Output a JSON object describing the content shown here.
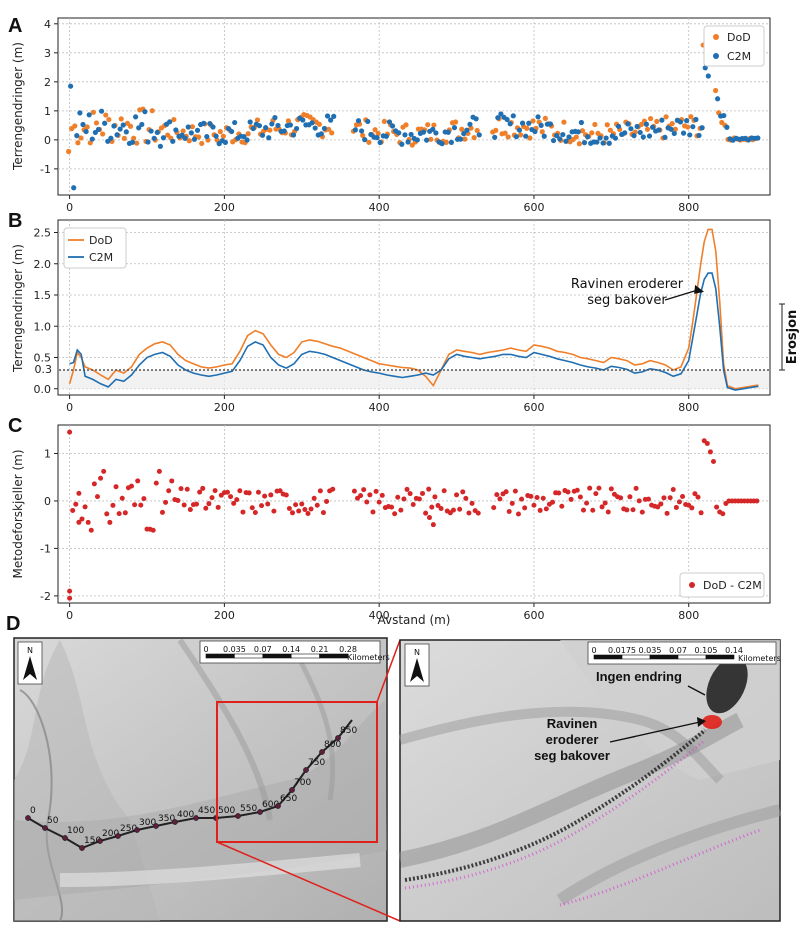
{
  "colors": {
    "dod": "#f07f2a",
    "c2m": "#1f6fb2",
    "diff": "#d62728",
    "grid": "#bdbdbd",
    "threshold": "#555555"
  },
  "chart_data": [
    {
      "panel": "A",
      "type": "scatter",
      "ylabel": "Terrengendringer (m)",
      "xlabel": "",
      "xlim": [
        -15,
        905
      ],
      "ylim": [
        -1.9,
        4.2
      ],
      "xticks": [
        "0",
        "200",
        "400",
        "600",
        "800"
      ],
      "yticks": [
        "-1",
        "0",
        "1",
        "2",
        "3",
        "4"
      ],
      "grid": true,
      "legend": "top-right",
      "series": [
        {
          "name": "DoD",
          "key": "dod",
          "gen": "pointsA_dod"
        },
        {
          "name": "C2M",
          "key": "c2m",
          "gen": "pointsA_c2m"
        }
      ]
    },
    {
      "panel": "B",
      "type": "line",
      "ylabel": "Terrengendringer (m)",
      "xlabel": "",
      "xlim": [
        -15,
        905
      ],
      "ylim": [
        -0.1,
        2.7
      ],
      "xticks": [
        "0",
        "200",
        "400",
        "600",
        "800"
      ],
      "yticks": [
        "0.0",
        "0.5",
        "1.0",
        "1.5",
        "2.0",
        "2.5"
      ],
      "threshold": {
        "value": 0.3,
        "label": "0.3"
      },
      "grid": true,
      "legend": "top-left",
      "annotation": {
        "line1": "Ravinen eroderer",
        "line2": "seg bakover",
        "x": 825,
        "y": 1.55
      },
      "side_label": "Erosjon",
      "series": [
        {
          "name": "DoD",
          "key": "dod",
          "x": [
            0,
            5,
            10,
            15,
            20,
            30,
            40,
            50,
            60,
            70,
            80,
            90,
            100,
            110,
            120,
            130,
            140,
            150,
            160,
            170,
            180,
            190,
            200,
            210,
            220,
            230,
            240,
            250,
            260,
            270,
            280,
            290,
            300,
            310,
            320,
            330,
            340,
            350,
            360,
            370,
            380,
            390,
            400,
            410,
            420,
            430,
            440,
            450,
            460,
            470,
            480,
            490,
            500,
            510,
            520,
            530,
            540,
            550,
            560,
            570,
            580,
            590,
            600,
            610,
            620,
            630,
            640,
            650,
            660,
            670,
            680,
            690,
            700,
            710,
            720,
            730,
            740,
            750,
            760,
            770,
            780,
            790,
            800,
            805,
            810,
            815,
            820,
            825,
            830,
            835,
            840,
            845,
            850,
            860,
            870,
            880,
            890
          ],
          "y": [
            0.08,
            0.3,
            0.58,
            0.5,
            0.35,
            0.3,
            0.22,
            0.15,
            0.3,
            0.25,
            0.35,
            0.55,
            0.65,
            0.72,
            0.75,
            0.7,
            0.55,
            0.45,
            0.4,
            0.35,
            0.33,
            0.35,
            0.38,
            0.4,
            0.6,
            0.85,
            0.93,
            0.88,
            0.7,
            0.55,
            0.5,
            0.58,
            0.75,
            0.78,
            0.76,
            0.72,
            0.68,
            0.65,
            0.6,
            0.55,
            0.5,
            0.45,
            0.4,
            0.38,
            0.36,
            0.34,
            0.33,
            0.3,
            0.2,
            0.05,
            0.3,
            0.55,
            0.62,
            0.6,
            0.58,
            0.55,
            0.58,
            0.6,
            0.62,
            0.65,
            0.62,
            0.6,
            0.7,
            0.68,
            0.65,
            0.6,
            0.58,
            0.55,
            0.5,
            0.48,
            0.45,
            0.42,
            0.5,
            0.48,
            0.45,
            0.38,
            0.4,
            0.45,
            0.42,
            0.38,
            0.3,
            0.35,
            0.65,
            1.05,
            1.5,
            1.95,
            2.35,
            2.55,
            2.55,
            2.2,
            1.4,
            0.4,
            0.05,
            0.0,
            0.02,
            0.04,
            0.06
          ]
        },
        {
          "name": "C2M",
          "key": "c2m",
          "x": [
            0,
            5,
            10,
            15,
            20,
            30,
            40,
            50,
            60,
            70,
            80,
            90,
            100,
            110,
            120,
            130,
            140,
            150,
            160,
            170,
            180,
            190,
            200,
            210,
            220,
            230,
            240,
            250,
            260,
            270,
            280,
            290,
            300,
            310,
            320,
            330,
            340,
            350,
            360,
            370,
            380,
            390,
            400,
            410,
            420,
            430,
            440,
            450,
            460,
            470,
            480,
            490,
            500,
            510,
            520,
            530,
            540,
            550,
            560,
            570,
            580,
            590,
            600,
            610,
            620,
            630,
            640,
            650,
            660,
            670,
            680,
            690,
            700,
            710,
            720,
            730,
            740,
            750,
            760,
            770,
            780,
            790,
            800,
            805,
            810,
            815,
            820,
            825,
            830,
            835,
            840,
            845,
            850,
            860,
            870,
            880,
            890
          ],
          "y": [
            0.4,
            0.42,
            0.62,
            0.55,
            0.2,
            0.15,
            0.08,
            0.03,
            0.15,
            0.12,
            0.22,
            0.38,
            0.5,
            0.55,
            0.58,
            0.52,
            0.38,
            0.3,
            0.25,
            0.22,
            0.2,
            0.22,
            0.25,
            0.28,
            0.45,
            0.68,
            0.75,
            0.7,
            0.5,
            0.38,
            0.33,
            0.4,
            0.55,
            0.6,
            0.58,
            0.55,
            0.5,
            0.45,
            0.4,
            0.35,
            0.3,
            0.27,
            0.25,
            0.22,
            0.2,
            0.18,
            0.2,
            0.22,
            0.25,
            0.22,
            0.3,
            0.48,
            0.55,
            0.52,
            0.5,
            0.48,
            0.5,
            0.52,
            0.55,
            0.55,
            0.52,
            0.5,
            0.58,
            0.55,
            0.52,
            0.48,
            0.45,
            0.42,
            0.38,
            0.35,
            0.33,
            0.3,
            0.36,
            0.34,
            0.31,
            0.25,
            0.27,
            0.32,
            0.3,
            0.26,
            0.2,
            0.24,
            0.45,
            0.8,
            1.15,
            1.5,
            1.75,
            1.85,
            1.85,
            1.6,
            1.0,
            0.3,
            0.02,
            -0.02,
            0.0,
            0.02,
            0.04
          ]
        }
      ]
    },
    {
      "panel": "C",
      "type": "scatter",
      "ylabel": "Metodeforskjeller (m)",
      "xlabel": "Avstand (m)",
      "xlim": [
        -15,
        905
      ],
      "ylim": [
        -2.15,
        1.6
      ],
      "xticks": [
        "0",
        "200",
        "400",
        "600",
        "800"
      ],
      "yticks": [
        "-2",
        "-1",
        "0",
        "1"
      ],
      "grid": true,
      "legend": "bottom-right",
      "series": [
        {
          "name": "DoD - C2M",
          "key": "diff",
          "gen": "pointsC"
        }
      ]
    }
  ],
  "panels": {
    "a": "A",
    "b": "B",
    "c": "C",
    "d": "D"
  },
  "map_left": {
    "north": "N",
    "scale_ticks": [
      "0",
      "0.035",
      "0.07",
      "0.14",
      "0.21",
      "0.28"
    ],
    "scale_unit": "Kilometers",
    "chainage": [
      "0",
      "50",
      "100",
      "150",
      "200",
      "250",
      "300",
      "350",
      "400",
      "450",
      "500",
      "550",
      "600",
      "650",
      "700",
      "750",
      "800",
      "850"
    ]
  },
  "map_right": {
    "north": "N",
    "scale_ticks": [
      "0",
      "0.0175",
      "0.035",
      "0.07",
      "0.105",
      "0.14"
    ],
    "scale_unit": "Kilometers",
    "label_top": "Ingen endring",
    "label_mid_1": "Ravinen",
    "label_mid_2": "eroderer",
    "label_mid_3": "seg bakover"
  }
}
